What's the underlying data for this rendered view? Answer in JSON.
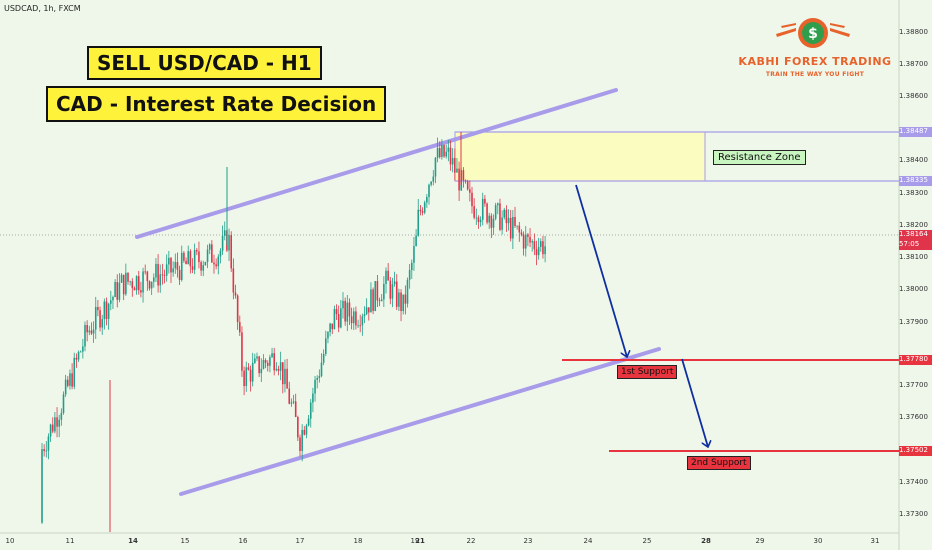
{
  "symbol_line": "USDCAD, 1h, FXCM",
  "headline": "SELL USD/CAD - H1",
  "subheadline": "CAD - Interest Rate Decision",
  "brand": {
    "name": "KABHI FOREX TRADING",
    "tagline": "TRAIN THE WAY YOU FIGHT",
    "logo_icon": "dollar-coin-icon",
    "color": "#e8622c"
  },
  "annotations": {
    "resistance_label": "Resistance Zone",
    "support1_label": "1st Support",
    "support2_label": "2nd Support"
  },
  "price_axis": {
    "ticks": [
      "1.38800",
      "1.38700",
      "1.38600",
      "1.38400",
      "1.38300",
      "1.38200",
      "1.38100",
      "1.38000",
      "1.37900",
      "1.37700",
      "1.37600",
      "1.37400",
      "1.37300"
    ],
    "highlight_levels": [
      "1.38487",
      "1.38335",
      "1.38164",
      "1.37780",
      "1.37502"
    ],
    "countdown": "57:05",
    "current_price": "1.38164"
  },
  "date_axis": {
    "labels": [
      "10",
      "11",
      "14",
      "15",
      "16",
      "17",
      "18",
      "19",
      "21",
      "22",
      "23",
      "24",
      "25",
      "28",
      "29",
      "30",
      "31"
    ],
    "bold": [
      "14",
      "21",
      "28"
    ]
  },
  "colors": {
    "background": "#eef7ea",
    "bull_candle": "#1f9e8a",
    "bear_candle": "#e0344a",
    "channel": "#a89bea",
    "zone_fill": "#fbfdc0",
    "arrow": "#0f2fa0",
    "support_line": "#e8343f"
  },
  "chart_data": {
    "type": "candlestick",
    "instrument": "USDCAD",
    "timeframe": "1h",
    "ylim": [
      1.3725,
      1.389
    ],
    "resistance_zone": [
      1.38335,
      1.38487
    ],
    "supports": [
      1.3778,
      1.37502
    ],
    "current_price": 1.38164,
    "close_path": [
      [
        10,
        1.3728
      ],
      [
        10.9,
        1.3768
      ],
      [
        11.8,
        1.3789
      ],
      [
        13.5,
        1.3805
      ],
      [
        14.6,
        1.3808
      ],
      [
        15.6,
        1.3815
      ],
      [
        15.75,
        1.382
      ],
      [
        16.0,
        1.3775
      ],
      [
        16.6,
        1.3782
      ],
      [
        16.9,
        1.3762
      ],
      [
        17.0,
        1.3755
      ],
      [
        17.6,
        1.3795
      ],
      [
        18.0,
        1.3795
      ],
      [
        18.5,
        1.3805
      ],
      [
        18.8,
        1.3797
      ],
      [
        19.4,
        1.3818
      ],
      [
        20.0,
        1.3825
      ],
      [
        21.3,
        1.3845
      ],
      [
        21.55,
        1.3846
      ],
      [
        22.0,
        1.383
      ],
      [
        22.5,
        1.3826
      ],
      [
        23.0,
        1.3818
      ],
      [
        23.3,
        1.3817
      ]
    ]
  }
}
